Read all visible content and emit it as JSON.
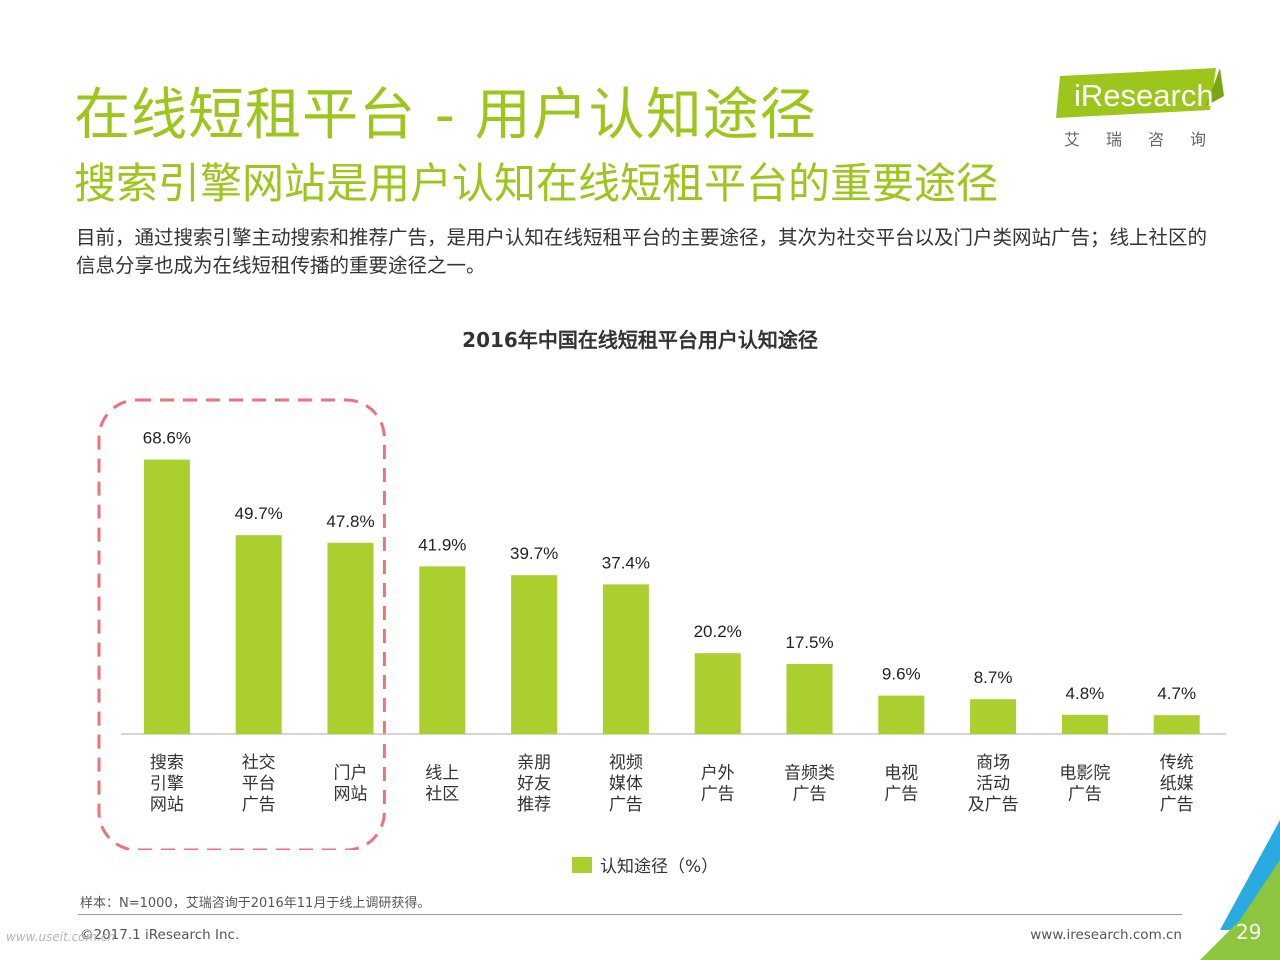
{
  "header": {
    "title": "在线短租平台 - 用户认知途径",
    "subtitle": "搜索引擎网站是用户认知在线短租平台的重要途径",
    "description": "目前，通过搜索引擎主动搜索和推荐广告，是用户认知在线短租平台的主要途径，其次为社交平台以及门户类网站广告；线上社区的信息分享也成为在线短租传播的重要途径之一。"
  },
  "logo": {
    "brand": "iResearch",
    "sub": "艾瑞咨询"
  },
  "colors": {
    "accent": "#9dc61d",
    "bar": "#aacf2e",
    "highlight": "#e8747c",
    "corner_green": "#8cc63f",
    "corner_blue": "#29abe2"
  },
  "chart_data": {
    "type": "bar",
    "title": "2016年中国在线短租平台用户认知途径",
    "categories": [
      [
        "搜索",
        "引擎",
        "网站"
      ],
      [
        "社交",
        "平台",
        "广告"
      ],
      [
        "门户",
        "网站"
      ],
      [
        "线上",
        "社区"
      ],
      [
        "亲朋",
        "好友",
        "推荐"
      ],
      [
        "视频",
        "媒体",
        "广告"
      ],
      [
        "户外",
        "广告"
      ],
      [
        "音频类",
        "广告"
      ],
      [
        "电视",
        "广告"
      ],
      [
        "商场",
        "活动",
        "及广告"
      ],
      [
        "电影院",
        "广告"
      ],
      [
        "传统",
        "纸媒",
        "广告"
      ]
    ],
    "series": [
      {
        "name": "认知途径（%）",
        "values": [
          68.6,
          49.7,
          47.8,
          41.9,
          39.7,
          37.4,
          20.2,
          17.5,
          9.6,
          8.7,
          4.8,
          4.7
        ]
      }
    ],
    "value_labels": [
      "68.6%",
      "49.7%",
      "47.8%",
      "41.9%",
      "39.7%",
      "37.4%",
      "20.2%",
      "17.5%",
      "9.6%",
      "8.7%",
      "4.8%",
      "4.7%"
    ],
    "ylim": [
      0,
      75
    ],
    "highlight_categories": [
      0,
      1,
      2
    ],
    "legend_position": "bottom",
    "grid": false
  },
  "legend": {
    "label": "认知途径（%）"
  },
  "footer": {
    "sample": "样本：N=1000，艾瑞咨询于2016年11月于线上调研获得。",
    "copyright": "©2017.1 iResearch Inc.",
    "website": "www.iresearch.com.cn",
    "page_number": "29",
    "watermark": "www.useit.com.cn"
  }
}
